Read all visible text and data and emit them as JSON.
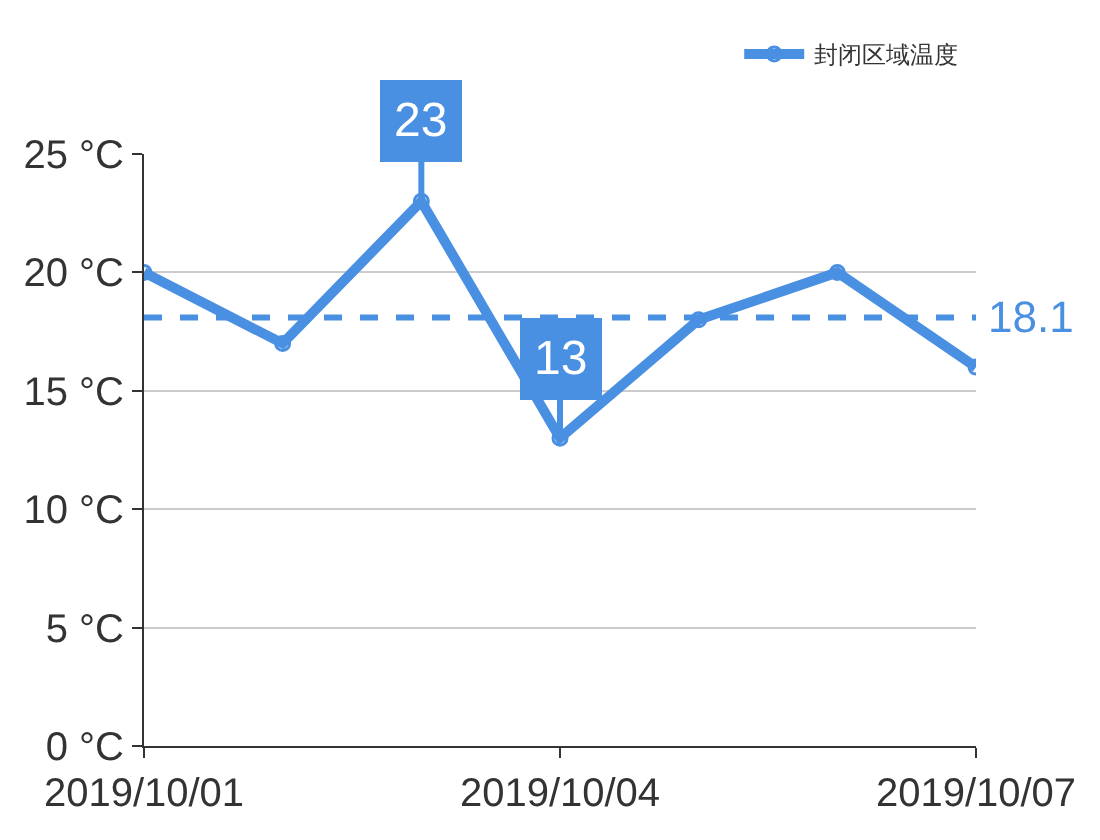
{
  "chart_data": {
    "type": "line",
    "x": [
      "2019-10-01",
      "2019-10-02",
      "2019-10-03",
      "2019-10-04",
      "2019-10-05",
      "2019-10-06",
      "2019-10-07"
    ],
    "series": [
      {
        "name": "封闭区域温度",
        "color": "#4a90e2",
        "values": [
          20,
          17,
          23,
          13,
          18,
          20,
          16
        ]
      }
    ],
    "xlim": [
      "2019-10-01",
      "2019-10-07"
    ],
    "xticks": [
      {
        "value": "2019-10-01",
        "label": "2019/10/01"
      },
      {
        "value": "2019-10-04",
        "label": "2019/10/04"
      },
      {
        "value": "2019-10-07",
        "label": "2019/10/07"
      }
    ],
    "ylim": [
      0,
      25
    ],
    "yticks": [
      {
        "value": 0,
        "label": "0 °C"
      },
      {
        "value": 5,
        "label": "5 °C"
      },
      {
        "value": 10,
        "label": "10 °C"
      },
      {
        "value": 15,
        "label": "15 °C"
      },
      {
        "value": 20,
        "label": "20 °C"
      },
      {
        "value": 25,
        "label": "25 °C"
      }
    ],
    "annotations": [
      {
        "text": "23",
        "x": "2019-10-03",
        "y": 23
      },
      {
        "text": "13",
        "x": "2019-10-04",
        "y": 13
      }
    ],
    "ref_lines": [
      {
        "axis": "y",
        "value": 18.1,
        "label": "18.1",
        "color": "#4a90e2",
        "line_style": "dashed"
      }
    ],
    "grid": "y",
    "legend": "top",
    "marker": "circle",
    "line_style": "solid"
  }
}
